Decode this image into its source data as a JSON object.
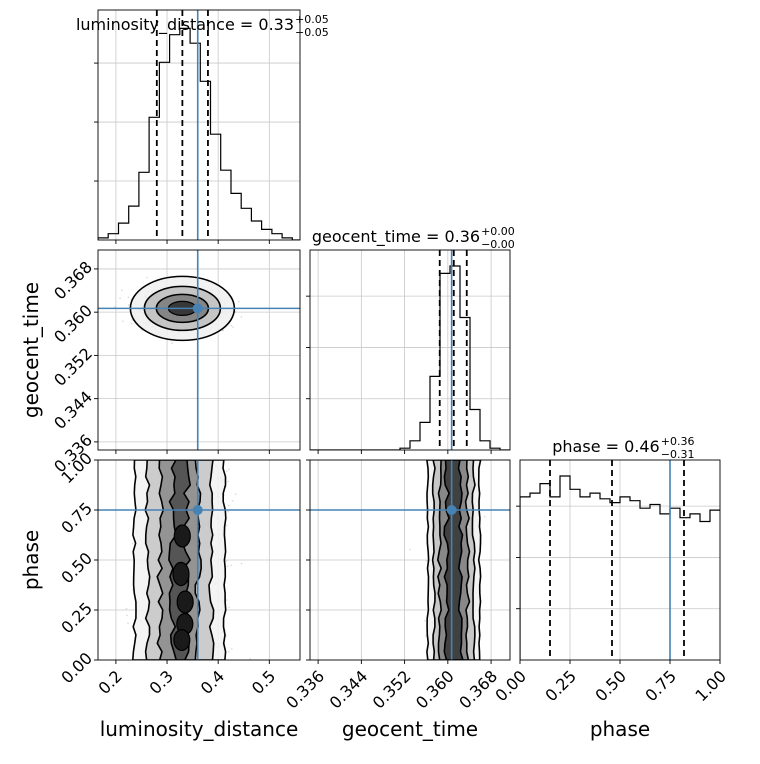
{
  "chart_data": {
    "type": "corner",
    "parameters": [
      "luminosity_distance",
      "geocent_time",
      "phase"
    ],
    "truths": {
      "luminosity_distance": 0.36,
      "geocent_time": 0.3607,
      "phase": 0.75
    },
    "ranges": {
      "luminosity_distance": [
        0.165,
        0.56
      ],
      "geocent_time": [
        0.3345,
        0.3715
      ],
      "phase": [
        0.0,
        1.0
      ]
    },
    "ticks": {
      "luminosity_distance": [
        0.2,
        0.3,
        0.4,
        0.5
      ],
      "geocent_time": [
        0.336,
        0.344,
        0.352,
        0.36,
        0.368
      ],
      "phase": [
        0.0,
        0.25,
        0.5,
        0.75,
        1.0
      ]
    },
    "tick_labels": {
      "luminosity_distance": [
        "0.2",
        "0.3",
        "0.4",
        "0.5"
      ],
      "geocent_time": [
        "0.336",
        "0.344",
        "0.352",
        "0.360",
        "0.368"
      ],
      "phase": [
        "0.00",
        "0.25",
        "0.50",
        "0.75",
        "1.00"
      ]
    },
    "titles": [
      {
        "param": "luminosity_distance",
        "label": "luminosity_distance = 0.33",
        "up": "+0.05",
        "down": "−0.05"
      },
      {
        "param": "geocent_time",
        "label": "geocent_time = 0.36",
        "up": "+0.00",
        "down": "−0.00"
      },
      {
        "param": "phase",
        "label": "phase = 0.46",
        "up": "+0.36",
        "down": "−0.31"
      }
    ],
    "quantiles": {
      "luminosity_distance": [
        0.28,
        0.33,
        0.38
      ],
      "geocent_time": [
        0.3585,
        0.3611,
        0.3635
      ],
      "phase": [
        0.15,
        0.46,
        0.82
      ]
    },
    "histograms": {
      "luminosity_distance": {
        "edges_start": 0.165,
        "bin_width": 0.02,
        "counts": [
          1,
          3,
          8,
          16,
          32,
          58,
          84,
          97,
          100,
          93,
          75,
          50,
          33,
          22,
          15,
          9,
          5,
          3,
          1,
          0
        ]
      },
      "geocent_time": {
        "edges_start": 0.3345,
        "bin_width": 0.00185,
        "counts": [
          0,
          0,
          0,
          0,
          0,
          0,
          0,
          0,
          0,
          1,
          5,
          15,
          40,
          96,
          100,
          72,
          22,
          5,
          1,
          0
        ]
      },
      "phase": {
        "edges_start": 0.0,
        "bin_width": 0.05,
        "counts": [
          86,
          88,
          93,
          86,
          97,
          90,
          86,
          88,
          85,
          83,
          86,
          84,
          80,
          82,
          77,
          80,
          75,
          77,
          73,
          79
        ]
      }
    },
    "truth_color": "#4682b4",
    "density_color": "#000000"
  }
}
